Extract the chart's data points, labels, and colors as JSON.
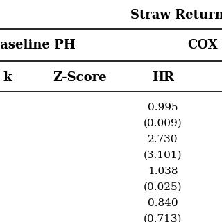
{
  "title_top": "Straw Return",
  "header1_left": "Baseline PH",
  "header1_right": "COX",
  "header2_col1": "k",
  "header2_col2": "Z-Score",
  "header2_col3": "HR",
  "data_values": [
    "0.995",
    "(0.009)",
    "2.730",
    "(3.101)",
    "1.038",
    "(0.025)",
    "0.840",
    "(0.713)"
  ],
  "bg_color": "#ffffff",
  "text_color": "#000000",
  "line_color": "#000000",
  "title_fontsize": 13,
  "header_fontsize": 13,
  "data_fontsize": 11
}
